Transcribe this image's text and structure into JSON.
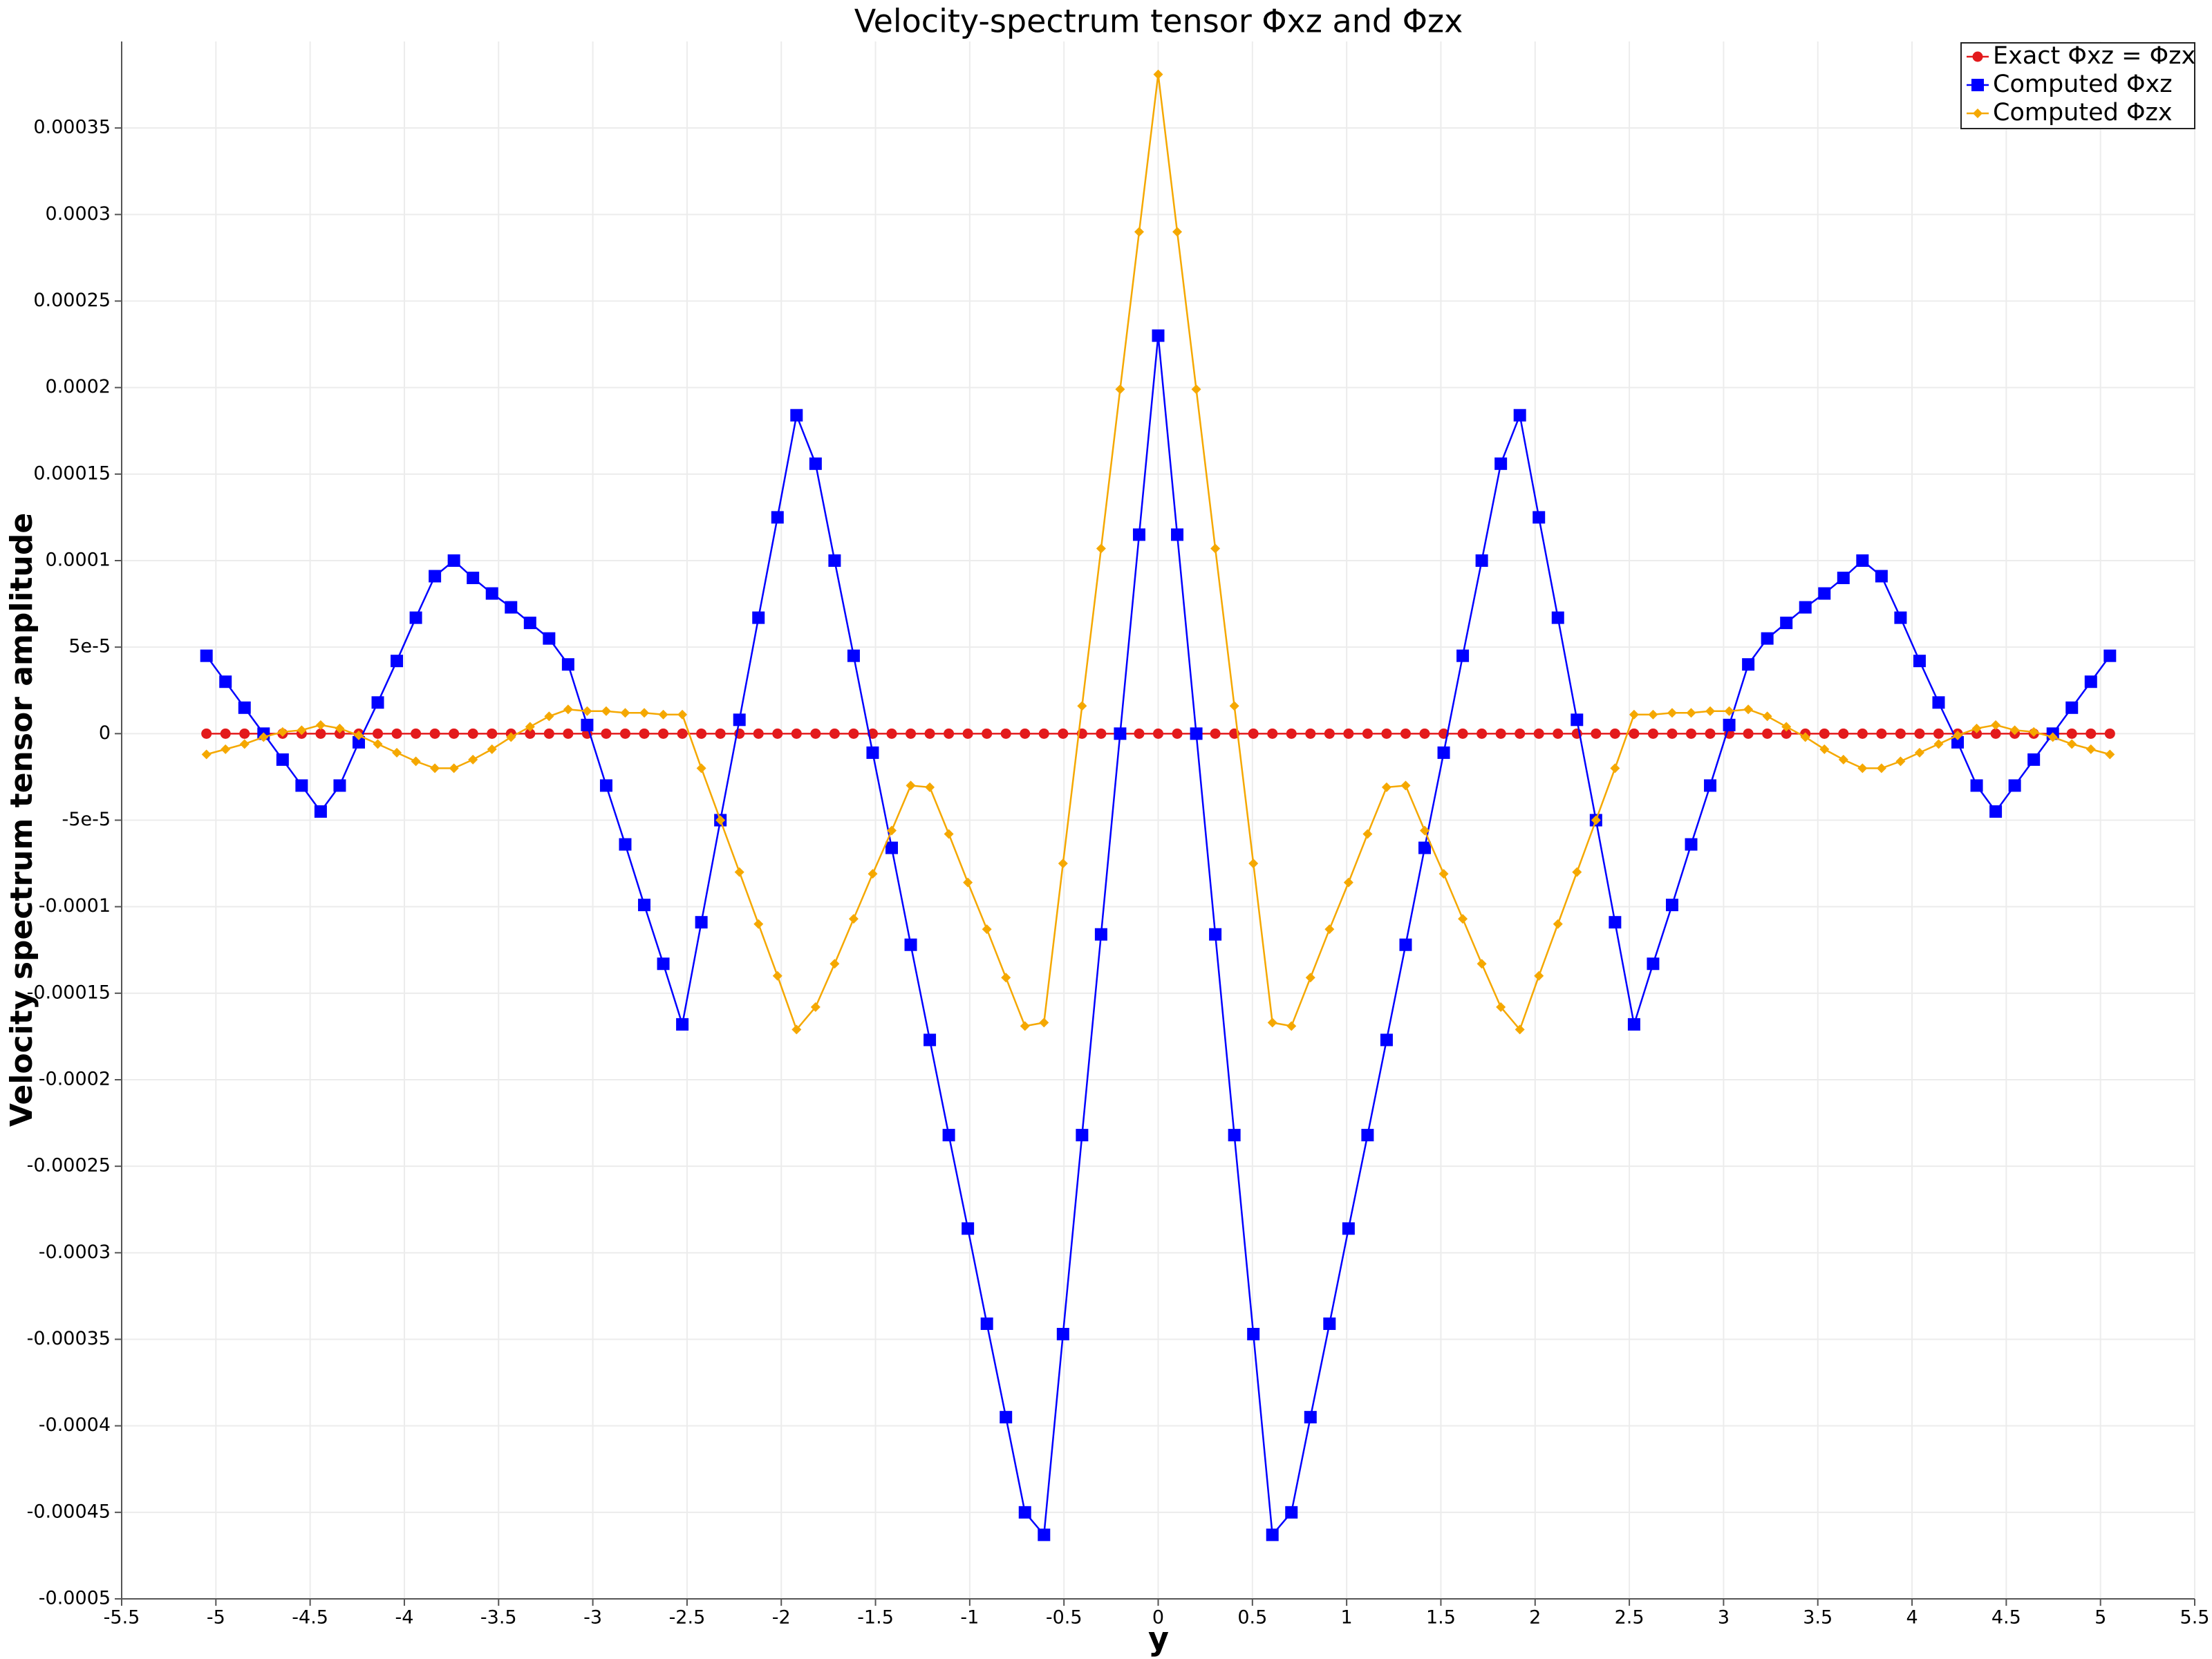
{
  "chart_data": {
    "type": "line",
    "title": "Velocity-spectrum tensor Φxz and Φzx",
    "xlabel": "y",
    "ylabel": "Velocity spectrum tensor amplitude",
    "legend": "top-right",
    "grid": true,
    "xlim": [
      -5.5,
      5.5
    ],
    "ylim": [
      -0.0005,
      0.0004
    ],
    "xticks": [
      -5.5,
      -5,
      -4.5,
      -4,
      -3.5,
      -3,
      -2.5,
      -2,
      -1.5,
      -1,
      -0.5,
      0,
      0.5,
      1,
      1.5,
      2,
      2.5,
      3,
      3.5,
      4,
      4.5,
      5,
      5.5
    ],
    "yticks": [
      -0.0005,
      -0.00045,
      -0.0004,
      -0.00035,
      -0.0003,
      -0.00025,
      -0.0002,
      -0.00015,
      -0.0001,
      {
        "value": -5e-05,
        "label": "-5e-5"
      },
      0,
      {
        "value": 5e-05,
        "label": "5e-5"
      },
      0.0001,
      0.00015,
      0.0002,
      0.00025,
      0.0003,
      0.00035
    ],
    "x": [
      -5.05,
      -4.949,
      -4.848,
      -4.747,
      -4.646,
      -4.545,
      -4.444,
      -4.343,
      -4.242,
      -4.141,
      -4.04,
      -3.939,
      -3.838,
      -3.737,
      -3.636,
      -3.535,
      -3.434,
      -3.333,
      -3.232,
      -3.131,
      -3.03,
      -2.929,
      -2.828,
      -2.727,
      -2.626,
      -2.525,
      -2.424,
      -2.323,
      -2.222,
      -2.121,
      -2.02,
      -1.919,
      -1.818,
      -1.717,
      -1.616,
      -1.515,
      -1.414,
      -1.313,
      -1.212,
      -1.111,
      -1.01,
      -0.909,
      -0.808,
      -0.707,
      -0.606,
      -0.505,
      -0.404,
      -0.303,
      -0.202,
      -0.101,
      0,
      0.101,
      0.202,
      0.303,
      0.404,
      0.505,
      0.606,
      0.707,
      0.808,
      0.909,
      1.01,
      1.111,
      1.212,
      1.313,
      1.414,
      1.515,
      1.616,
      1.717,
      1.818,
      1.919,
      2.02,
      2.121,
      2.222,
      2.323,
      2.424,
      2.525,
      2.626,
      2.727,
      2.828,
      2.929,
      3.03,
      3.131,
      3.232,
      3.333,
      3.434,
      3.535,
      3.636,
      3.737,
      3.838,
      3.939,
      4.04,
      4.141,
      4.242,
      4.343,
      4.444,
      4.545,
      4.646,
      4.747,
      4.848,
      4.949,
      5.05
    ],
    "series": [
      {
        "name": "Exact Φxz = Φzx",
        "color": "#e31a1c",
        "marker": "circle",
        "values": [
          0,
          0,
          0,
          0,
          0,
          0,
          0,
          0,
          0,
          0,
          0,
          0,
          0,
          0,
          0,
          0,
          0,
          0,
          0,
          0,
          0,
          0,
          0,
          0,
          0,
          0,
          0,
          0,
          0,
          0,
          0,
          0,
          0,
          0,
          0,
          0,
          0,
          0,
          0,
          0,
          0,
          0,
          0,
          0,
          0,
          0,
          0,
          0,
          0,
          0,
          0,
          0,
          0,
          0,
          0,
          0,
          0,
          0,
          0,
          0,
          0,
          0,
          0,
          0,
          0,
          0,
          0,
          0,
          0,
          0,
          0,
          0,
          0,
          0,
          0,
          0,
          0,
          0,
          0,
          0,
          0,
          0,
          0,
          0,
          0,
          0,
          0,
          0,
          0,
          0,
          0,
          0,
          0,
          0,
          0,
          0,
          0,
          0,
          0,
          0,
          0
        ]
      },
      {
        "name": "Computed Φxz",
        "color": "#0000ff",
        "marker": "square",
        "values": [
          4.5e-05,
          3e-05,
          1.5e-05,
          0,
          -1.5e-05,
          -3e-05,
          -4.5e-05,
          -3e-05,
          -5e-06,
          1.8e-05,
          4.2e-05,
          6.7e-05,
          9.1e-05,
          0.0001,
          9e-05,
          8.1e-05,
          7.3e-05,
          6.4e-05,
          5.5e-05,
          4e-05,
          5e-06,
          -3e-05,
          -6.4e-05,
          -9.9e-05,
          -0.000133,
          -0.000168,
          -0.000109,
          -5e-05,
          8e-06,
          6.7e-05,
          0.000125,
          0.000184,
          0.000156,
          0.0001,
          4.5e-05,
          -1.1e-05,
          -6.6e-05,
          -0.000122,
          -0.000177,
          -0.000232,
          -0.000286,
          -0.000341,
          -0.000395,
          -0.00045,
          -0.000463,
          -0.000347,
          -0.000232,
          -0.000116,
          0,
          0.000115,
          0.00023,
          0.000115,
          0,
          -0.000116,
          -0.000232,
          -0.000347,
          -0.000463,
          -0.00045,
          -0.000395,
          -0.000341,
          -0.000286,
          -0.000232,
          -0.000177,
          -0.000122,
          -6.6e-05,
          -1.1e-05,
          4.5e-05,
          0.0001,
          0.000156,
          0.000184,
          0.000125,
          6.7e-05,
          8e-06,
          -5e-05,
          -0.000109,
          -0.000168,
          -0.000133,
          -9.9e-05,
          -6.4e-05,
          -3e-05,
          5e-06,
          4e-05,
          5.5e-05,
          6.4e-05,
          7.3e-05,
          8.1e-05,
          9e-05,
          0.0001,
          9.1e-05,
          6.7e-05,
          4.2e-05,
          1.8e-05,
          -5e-06,
          -3e-05,
          -4.5e-05,
          -3e-05,
          -1.5e-05,
          0,
          1.5e-05,
          3e-05,
          4.5e-05
        ]
      },
      {
        "name": "Computed Φzx",
        "color": "#f5a800",
        "marker": "diamond",
        "values": [
          -1.2e-05,
          -9e-06,
          -6e-06,
          -2e-06,
          1e-06,
          2e-06,
          5e-06,
          3e-06,
          -1e-06,
          -6e-06,
          -1.1e-05,
          -1.6e-05,
          -2e-05,
          -2e-05,
          -1.5e-05,
          -9e-06,
          -2e-06,
          4e-06,
          1e-05,
          1.4e-05,
          1.3e-05,
          1.3e-05,
          1.2e-05,
          1.2e-05,
          1.1e-05,
          1.1e-05,
          -2e-05,
          -5e-05,
          -8e-05,
          -0.00011,
          -0.00014,
          -0.000171,
          -0.000158,
          -0.000133,
          -0.000107,
          -8.1e-05,
          -5.6e-05,
          -3e-05,
          -3.1e-05,
          -5.8e-05,
          -8.6e-05,
          -0.000113,
          -0.000141,
          -0.000169,
          -0.000167,
          -7.5e-05,
          1.6e-05,
          0.000107,
          0.000199,
          0.00029,
          0.000381,
          0.00029,
          0.000199,
          0.000107,
          1.6e-05,
          -7.5e-05,
          -0.000167,
          -0.000169,
          -0.000141,
          -0.000113,
          -8.6e-05,
          -5.8e-05,
          -3.1e-05,
          -3e-05,
          -5.6e-05,
          -8.1e-05,
          -0.000107,
          -0.000133,
          -0.000158,
          -0.000171,
          -0.00014,
          -0.00011,
          -8e-05,
          -5e-05,
          -2e-05,
          1.1e-05,
          1.1e-05,
          1.2e-05,
          1.2e-05,
          1.3e-05,
          1.3e-05,
          1.4e-05,
          1e-05,
          4e-06,
          -2e-06,
          -9e-06,
          -1.5e-05,
          -2e-05,
          -2e-05,
          -1.6e-05,
          -1.1e-05,
          -6e-06,
          -1e-06,
          3e-06,
          5e-06,
          2e-06,
          1e-06,
          -2e-06,
          -6e-06,
          -9e-06,
          -1.2e-05
        ]
      }
    ]
  }
}
